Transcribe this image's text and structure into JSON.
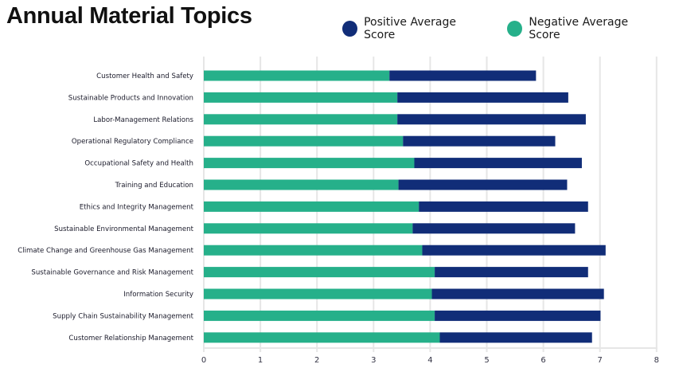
{
  "chart_data": {
    "type": "bar",
    "orientation": "horizontal",
    "stacked": true,
    "title": "Annual Material Topics",
    "xlabel": "",
    "ylabel": "",
    "xlim": [
      0,
      8
    ],
    "xticks": [
      "0",
      "1",
      "2",
      "3",
      "4",
      "5",
      "6",
      "7",
      "8"
    ],
    "grid": true,
    "legend_position": "top-right",
    "categories": [
      "Customer Health and Safety",
      "Sustainable Products and Innovation",
      "Labor-Management Relations",
      "Operational Regulatory Compliance",
      "Occupational Safety and Health",
      "Training and Education",
      "Ethics and Integrity Management",
      "Sustainable Environmental Management",
      "Climate Change and Greenhouse Gas Management",
      "Sustainable Governance and Risk Management",
      "Information Security",
      "Supply Chain Sustainability Management",
      "Customer Relationship Management"
    ],
    "series": [
      {
        "name": "Negative Average Score",
        "color": "#26b08a",
        "values": [
          3.28,
          3.42,
          3.42,
          3.52,
          3.72,
          3.44,
          3.8,
          3.69,
          3.86,
          4.08,
          4.03,
          4.08,
          4.17
        ]
      },
      {
        "name": "Positive Average Score",
        "color": "#112d78",
        "values": [
          2.59,
          3.02,
          3.33,
          2.69,
          2.96,
          2.98,
          2.99,
          2.87,
          3.24,
          2.71,
          3.04,
          2.93,
          2.69
        ]
      }
    ],
    "legend": [
      {
        "name": "Positive Average Score",
        "color": "#112d78"
      },
      {
        "name": "Negative Average Score",
        "color": "#26b08a"
      }
    ]
  }
}
